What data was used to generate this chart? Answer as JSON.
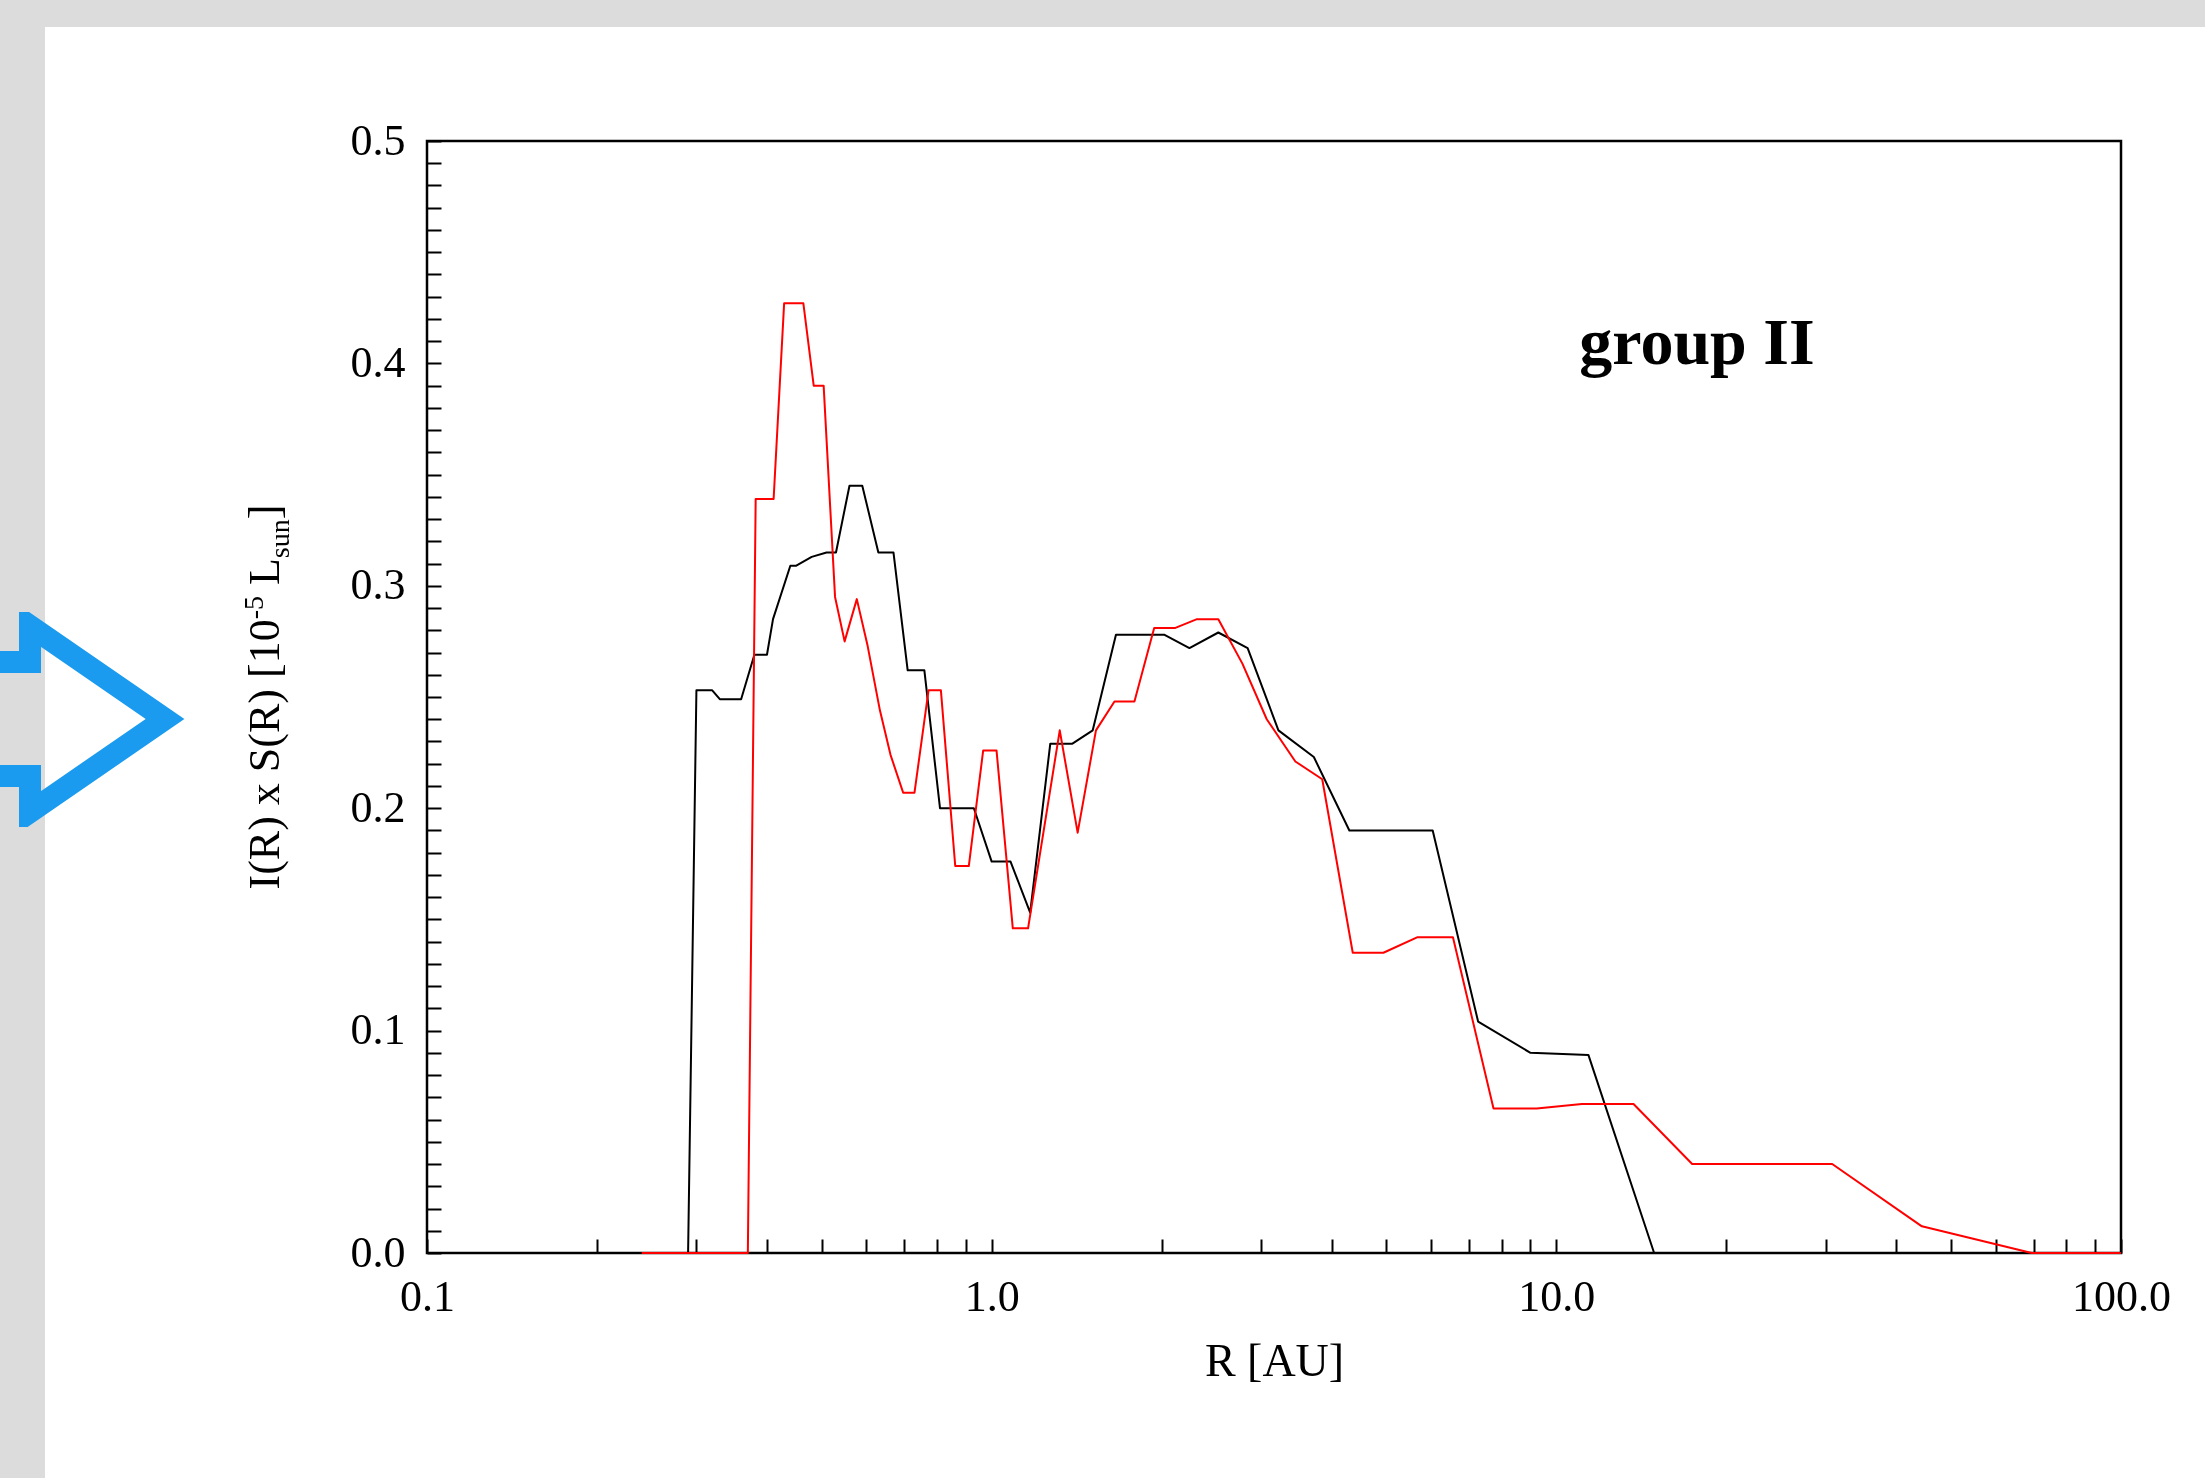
{
  "chart_data": {
    "type": "line",
    "xlabel": "R [AU]",
    "ylabel": "I(R) x S(R) [10$^{-5}$  L$_{sun}$]",
    "annotations": [
      "group II"
    ],
    "log": "x",
    "grid": false,
    "xlim": [
      0.1,
      100
    ],
    "ylim": [
      0,
      0.5
    ],
    "xticks": [
      {
        "value": 0.1,
        "label": "0.1"
      },
      {
        "value": 0.2,
        "label": null
      },
      {
        "value": 0.3,
        "label": null
      },
      {
        "value": 0.4,
        "label": null
      },
      {
        "value": 0.5,
        "label": null
      },
      {
        "value": 0.6,
        "label": null
      },
      {
        "value": 0.7,
        "label": null
      },
      {
        "value": 0.8,
        "label": null
      },
      {
        "value": 0.9,
        "label": null
      },
      {
        "value": 1,
        "label": "1.0"
      },
      {
        "value": 2,
        "label": null
      },
      {
        "value": 3,
        "label": null
      },
      {
        "value": 4,
        "label": null
      },
      {
        "value": 5,
        "label": null
      },
      {
        "value": 6,
        "label": null
      },
      {
        "value": 7,
        "label": null
      },
      {
        "value": 8,
        "label": null
      },
      {
        "value": 9,
        "label": null
      },
      {
        "value": 10,
        "label": "10.0"
      },
      {
        "value": 20,
        "label": null
      },
      {
        "value": 30,
        "label": null
      },
      {
        "value": 40,
        "label": null
      },
      {
        "value": 50,
        "label": null
      },
      {
        "value": 60,
        "label": null
      },
      {
        "value": 70,
        "label": null
      },
      {
        "value": 80,
        "label": null
      },
      {
        "value": 90,
        "label": null
      },
      {
        "value": 100,
        "label": "100.0"
      }
    ],
    "yticks": [
      {
        "value": 0,
        "label": "0.0"
      },
      {
        "value": 0.01,
        "label": null
      },
      {
        "value": 0.02,
        "label": null
      },
      {
        "value": 0.03,
        "label": null
      },
      {
        "value": 0.04,
        "label": null
      },
      {
        "value": 0.05,
        "label": null
      },
      {
        "value": 0.06,
        "label": null
      },
      {
        "value": 0.07,
        "label": null
      },
      {
        "value": 0.08,
        "label": null
      },
      {
        "value": 0.09,
        "label": null
      },
      {
        "value": 0.1,
        "label": "0.1"
      },
      {
        "value": 0.11,
        "label": null
      },
      {
        "value": 0.12,
        "label": null
      },
      {
        "value": 0.13,
        "label": null
      },
      {
        "value": 0.14,
        "label": null
      },
      {
        "value": 0.15,
        "label": null
      },
      {
        "value": 0.16,
        "label": null
      },
      {
        "value": 0.17,
        "label": null
      },
      {
        "value": 0.18,
        "label": null
      },
      {
        "value": 0.19,
        "label": null
      },
      {
        "value": 0.2,
        "label": "0.2"
      },
      {
        "value": 0.21,
        "label": null
      },
      {
        "value": 0.22,
        "label": null
      },
      {
        "value": 0.23,
        "label": null
      },
      {
        "value": 0.24,
        "label": null
      },
      {
        "value": 0.25,
        "label": null
      },
      {
        "value": 0.26,
        "label": null
      },
      {
        "value": 0.27,
        "label": null
      },
      {
        "value": 0.28,
        "label": null
      },
      {
        "value": 0.29,
        "label": null
      },
      {
        "value": 0.3,
        "label": "0.3"
      },
      {
        "value": 0.31,
        "label": null
      },
      {
        "value": 0.32,
        "label": null
      },
      {
        "value": 0.33,
        "label": null
      },
      {
        "value": 0.34,
        "label": null
      },
      {
        "value": 0.35,
        "label": null
      },
      {
        "value": 0.36,
        "label": null
      },
      {
        "value": 0.37,
        "label": null
      },
      {
        "value": 0.38,
        "label": null
      },
      {
        "value": 0.39,
        "label": null
      },
      {
        "value": 0.4,
        "label": "0.4"
      },
      {
        "value": 0.41,
        "label": null
      },
      {
        "value": 0.42,
        "label": null
      },
      {
        "value": 0.43,
        "label": null
      },
      {
        "value": 0.44,
        "label": null
      },
      {
        "value": 0.45,
        "label": null
      },
      {
        "value": 0.46,
        "label": null
      },
      {
        "value": 0.47,
        "label": null
      },
      {
        "value": 0.48,
        "label": null
      },
      {
        "value": 0.49,
        "label": null
      },
      {
        "value": 0.5,
        "label": "0.5"
      }
    ],
    "series": [
      {
        "color": "#000000",
        "x": [
          0.24,
          0.29,
          0.3,
          0.32,
          0.33,
          0.36,
          0.38,
          0.4,
          0.41,
          0.44,
          0.45,
          0.48,
          0.51,
          0.53,
          0.56,
          0.59,
          0.63,
          0.67,
          0.71,
          0.76,
          0.81,
          0.93,
          1.0,
          1.08,
          1.17,
          1.27,
          1.39,
          1.51,
          1.66,
          2.02,
          2.24,
          2.52,
          2.84,
          3.22,
          3.72,
          4.3,
          6.04,
          7.27,
          9.0,
          11.4,
          14.9,
          100
        ],
        "values": [
          0,
          0,
          0.253,
          0.253,
          0.249,
          0.249,
          0.269,
          0.269,
          0.285,
          0.309,
          0.309,
          0.313,
          0.315,
          0.315,
          0.345,
          0.345,
          0.315,
          0.315,
          0.262,
          0.262,
          0.2,
          0.2,
          0.176,
          0.176,
          0.153,
          0.229,
          0.229,
          0.235,
          0.278,
          0.278,
          0.272,
          0.279,
          0.272,
          0.235,
          0.223,
          0.19,
          0.19,
          0.104,
          0.09,
          0.089,
          0,
          0
        ]
      },
      {
        "color": "#ff0000",
        "x": [
          0.24,
          0.37,
          0.382,
          0.411,
          0.429,
          0.464,
          0.484,
          0.504,
          0.528,
          0.549,
          0.577,
          0.603,
          0.634,
          0.662,
          0.697,
          0.73,
          0.773,
          0.813,
          0.862,
          0.911,
          0.966,
          1.02,
          1.09,
          1.16,
          1.32,
          1.42,
          1.53,
          1.65,
          1.79,
          1.94,
          2.11,
          2.31,
          2.52,
          2.78,
          3.07,
          3.45,
          3.85,
          4.36,
          4.94,
          5.68,
          6.56,
          7.74,
          9.23,
          11.1,
          13.7,
          17.4,
          30.8,
          44.4,
          69.5,
          100
        ],
        "values": [
          0,
          0,
          0.339,
          0.339,
          0.427,
          0.427,
          0.39,
          0.39,
          0.295,
          0.275,
          0.294,
          0.273,
          0.244,
          0.224,
          0.207,
          0.207,
          0.253,
          0.253,
          0.174,
          0.174,
          0.226,
          0.226,
          0.146,
          0.146,
          0.235,
          0.189,
          0.235,
          0.248,
          0.248,
          0.281,
          0.281,
          0.285,
          0.285,
          0.265,
          0.24,
          0.221,
          0.213,
          0.135,
          0.135,
          0.142,
          0.142,
          0.065,
          0.065,
          0.067,
          0.067,
          0.04,
          0.04,
          0.012,
          0,
          0
        ]
      }
    ]
  }
}
